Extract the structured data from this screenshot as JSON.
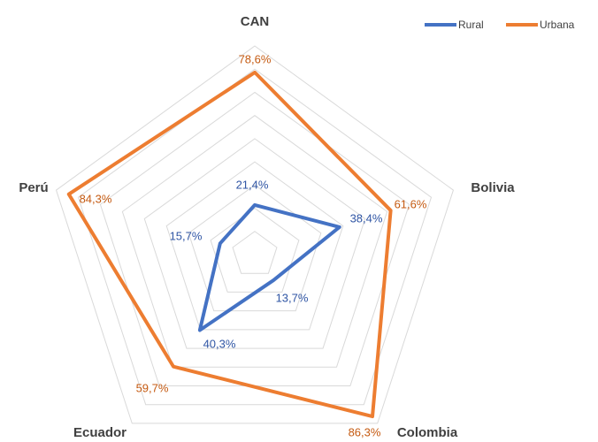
{
  "chart_data": {
    "type": "radar",
    "categories": [
      "CAN",
      "Bolivia",
      "Colombia",
      "Ecuador",
      "Perú"
    ],
    "series": [
      {
        "name": "Rural",
        "color": "#4472c4",
        "values": [
          21.4,
          38.4,
          13.7,
          40.3,
          15.7
        ],
        "value_labels": [
          "21,4%",
          "38,4%",
          "13,7%",
          "40,3%",
          "15,7%"
        ]
      },
      {
        "name": "Urbana",
        "color": "#ed7d31",
        "values": [
          78.6,
          61.6,
          86.3,
          59.7,
          84.3
        ],
        "value_labels": [
          "78,6%",
          "61,6%",
          "86,3%",
          "59,7%",
          "84,3%"
        ]
      }
    ],
    "rlim": [
      0,
      90
    ],
    "rticks": [
      10,
      20,
      30,
      40,
      50,
      60,
      70,
      80,
      90
    ],
    "grid": true,
    "legend": "top-right"
  }
}
